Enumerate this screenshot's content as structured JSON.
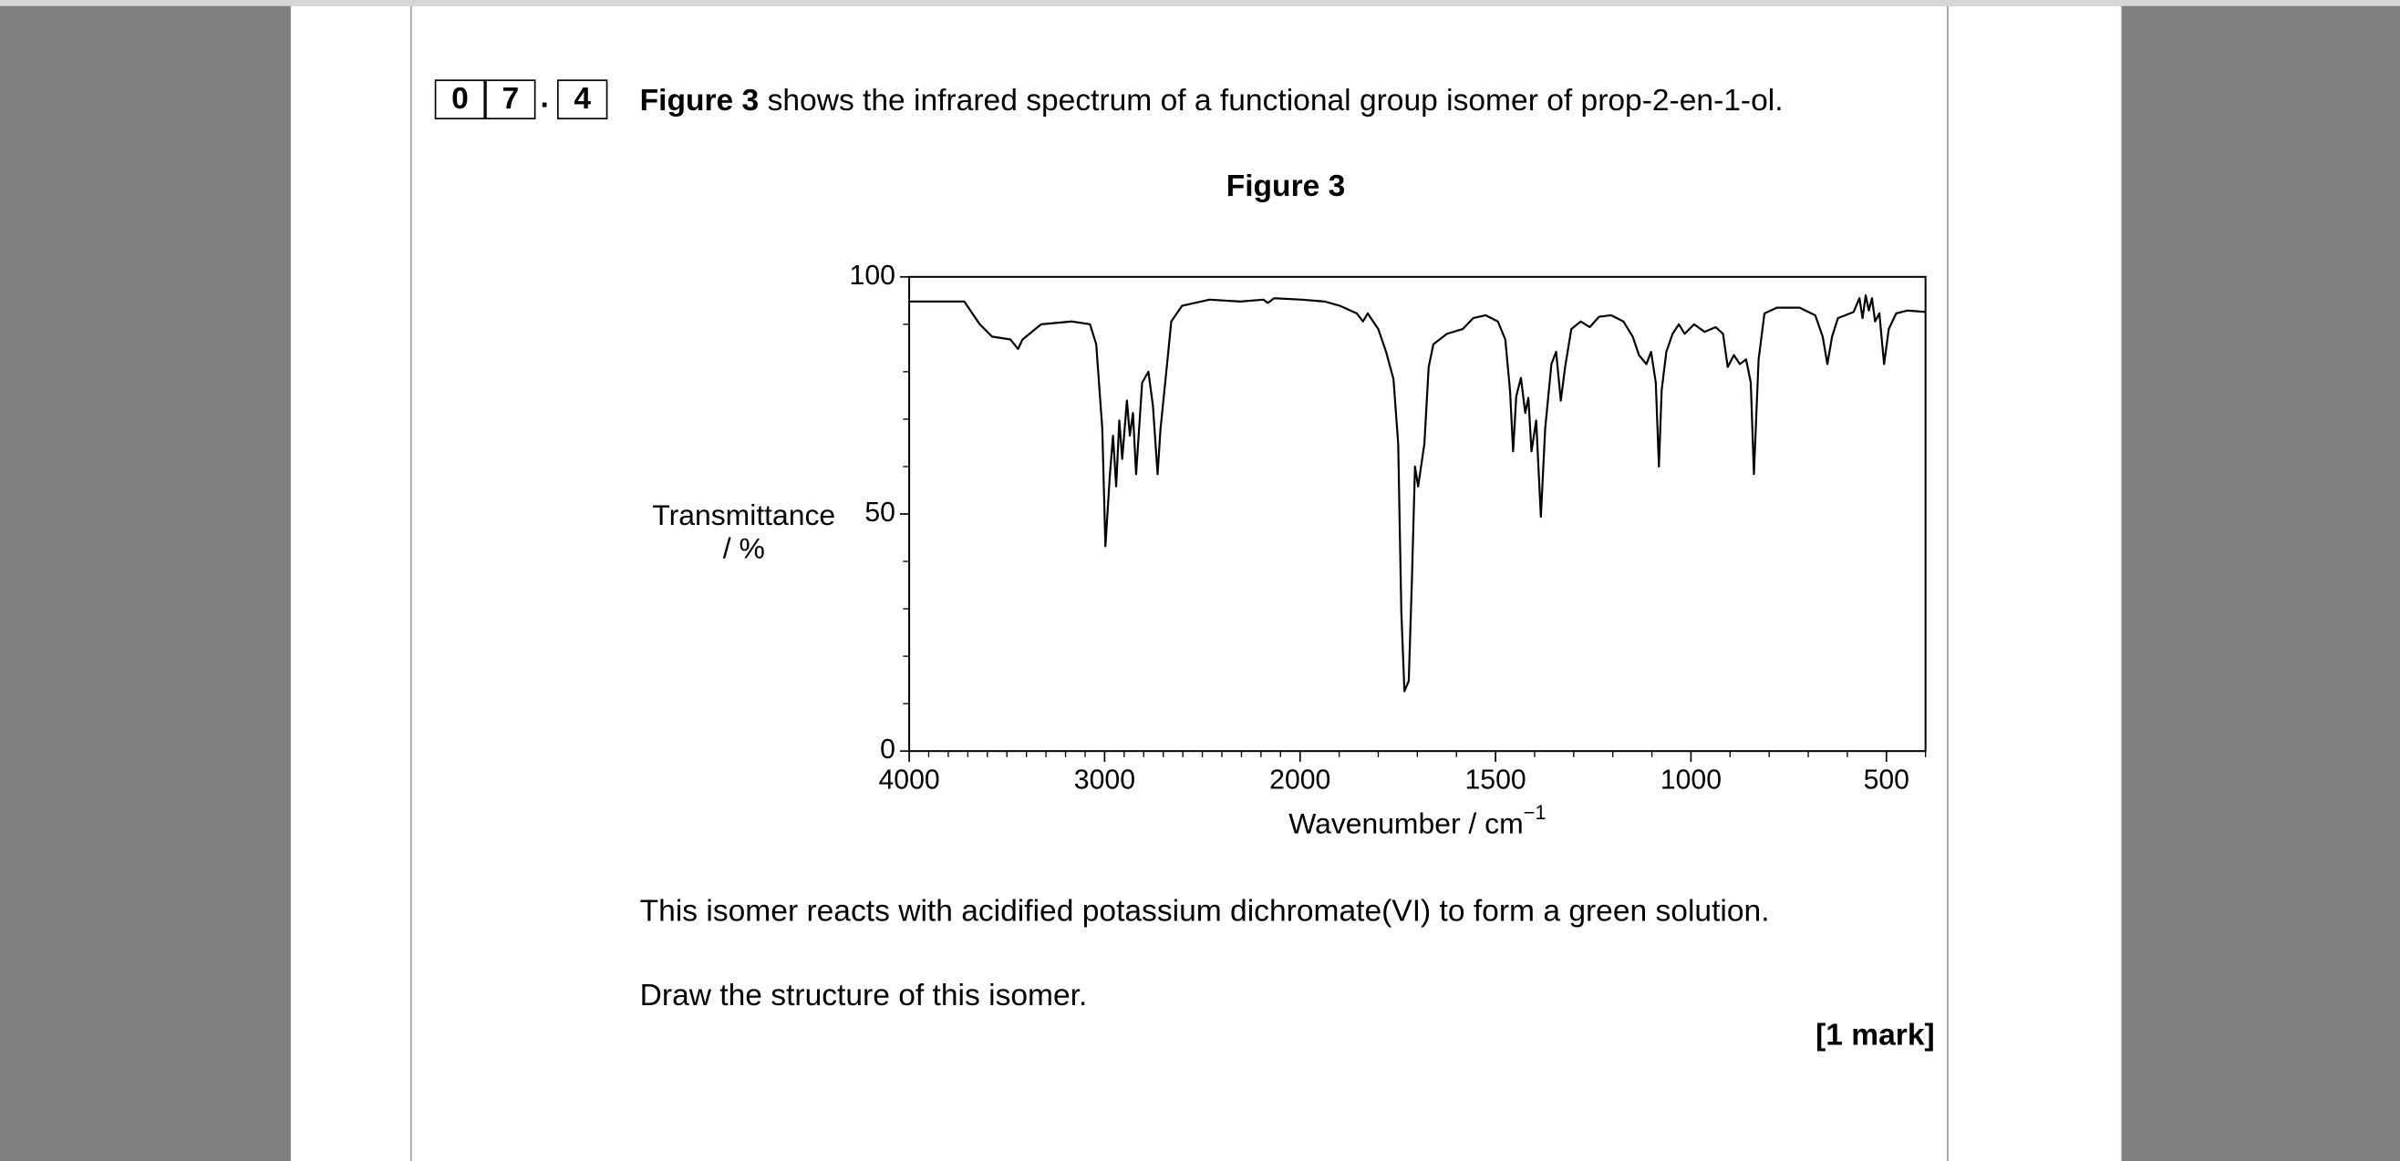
{
  "question": {
    "number": [
      "0",
      "7"
    ],
    "separator": ".",
    "part": "4",
    "intro_bold": "Figure 3",
    "intro_text": "shows the infrared spectrum of a functional group isomer of prop-2-en-1-ol."
  },
  "figure_title": "Figure 3",
  "chart_data": {
    "type": "line",
    "ylabel": [
      "Transmittance",
      "/ %"
    ],
    "xlabel": "Wavenumber / cm",
    "xlabel_superscript": "−1",
    "color": "#000000",
    "x_scale_break": 2000,
    "xlim": [
      4000,
      400
    ],
    "ylim": [
      0,
      100
    ],
    "xticks": [
      4000,
      3000,
      2000,
      1500,
      1000,
      500
    ],
    "yticks": [
      0,
      50,
      100
    ],
    "xminorticks": [
      3900,
      3800,
      3700,
      3600,
      3500,
      3400,
      3300,
      3200,
      3100,
      2900,
      2800,
      2700,
      2600,
      2500,
      2400,
      2300,
      2200,
      2100,
      1900,
      1800,
      1700,
      1600,
      1400,
      1300,
      1200,
      1100,
      900,
      800,
      700,
      600,
      400
    ],
    "yminorticks": [
      10,
      20,
      30,
      40,
      60,
      70,
      80,
      90
    ],
    "x": [
      4000,
      3718,
      3639,
      3576,
      3482,
      3443,
      3420,
      3325,
      3169,
      3075,
      3043,
      3012,
      2996,
      2973,
      2957,
      2941,
      2925,
      2910,
      2886,
      2871,
      2855,
      2839,
      2808,
      2776,
      2753,
      2729,
      2714,
      2682,
      2659,
      2604,
      2463,
      2306,
      2188,
      2165,
      2133,
      1996,
      1937,
      1898,
      1855,
      1839,
      1827,
      1800,
      1780,
      1761,
      1749,
      1741,
      1733,
      1722,
      1714,
      1706,
      1698,
      1682,
      1671,
      1659,
      1624,
      1584,
      1557,
      1525,
      1494,
      1475,
      1463,
      1455,
      1447,
      1435,
      1424,
      1416,
      1408,
      1396,
      1384,
      1373,
      1357,
      1345,
      1333,
      1322,
      1306,
      1282,
      1259,
      1235,
      1204,
      1173,
      1149,
      1133,
      1114,
      1102,
      1090,
      1082,
      1075,
      1063,
      1047,
      1031,
      1016,
      992,
      965,
      937,
      918,
      906,
      890,
      875,
      859,
      847,
      839,
      827,
      812,
      780,
      722,
      682,
      663,
      651,
      639,
      624,
      584,
      569,
      561,
      553,
      545,
      537,
      529,
      518,
      506,
      494,
      475,
      447,
      400
    ],
    "y": [
      94.8,
      94.8,
      90,
      87.4,
      86.8,
      84.8,
      86.8,
      90,
      90.6,
      90,
      85.8,
      68,
      43.2,
      58.4,
      66.5,
      55.8,
      69.7,
      61.6,
      73.9,
      66.5,
      71.3,
      58.4,
      77.7,
      80,
      72.9,
      58.4,
      68,
      81,
      90.6,
      93.9,
      95.2,
      94.8,
      95.2,
      94.5,
      95.5,
      95.2,
      94.8,
      93.9,
      92.3,
      90.6,
      92.3,
      89,
      84.2,
      78.4,
      64.8,
      29.4,
      12.6,
      14.8,
      35.8,
      60,
      55.8,
      64.8,
      81,
      85.8,
      88,
      89,
      91.3,
      91.9,
      90.6,
      86.8,
      76.1,
      63.2,
      74.8,
      78.7,
      71.3,
      74.5,
      63.2,
      69.7,
      49.4,
      68,
      81.6,
      84.2,
      73.9,
      81,
      89,
      90.6,
      89.4,
      91.6,
      91.9,
      90.6,
      87.4,
      83.5,
      81.6,
      84.2,
      77.7,
      60,
      76.1,
      84.2,
      88,
      90,
      88,
      90,
      88.4,
      89.4,
      88,
      81,
      83.5,
      81.6,
      82.6,
      77.7,
      58.4,
      82.6,
      92.3,
      93.5,
      93.5,
      91.9,
      87.4,
      81.6,
      87.4,
      91.3,
      92.6,
      95.5,
      91.3,
      96.1,
      92.9,
      95.5,
      90.6,
      92.3,
      81.6,
      89,
      92.3,
      92.9,
      92.6
    ]
  },
  "paragraphs": [
    "This isomer reacts with acidified potassium dichromate(VI) to form a green solution.",
    "Draw the structure of this isomer."
  ],
  "marks": "[1 mark]"
}
